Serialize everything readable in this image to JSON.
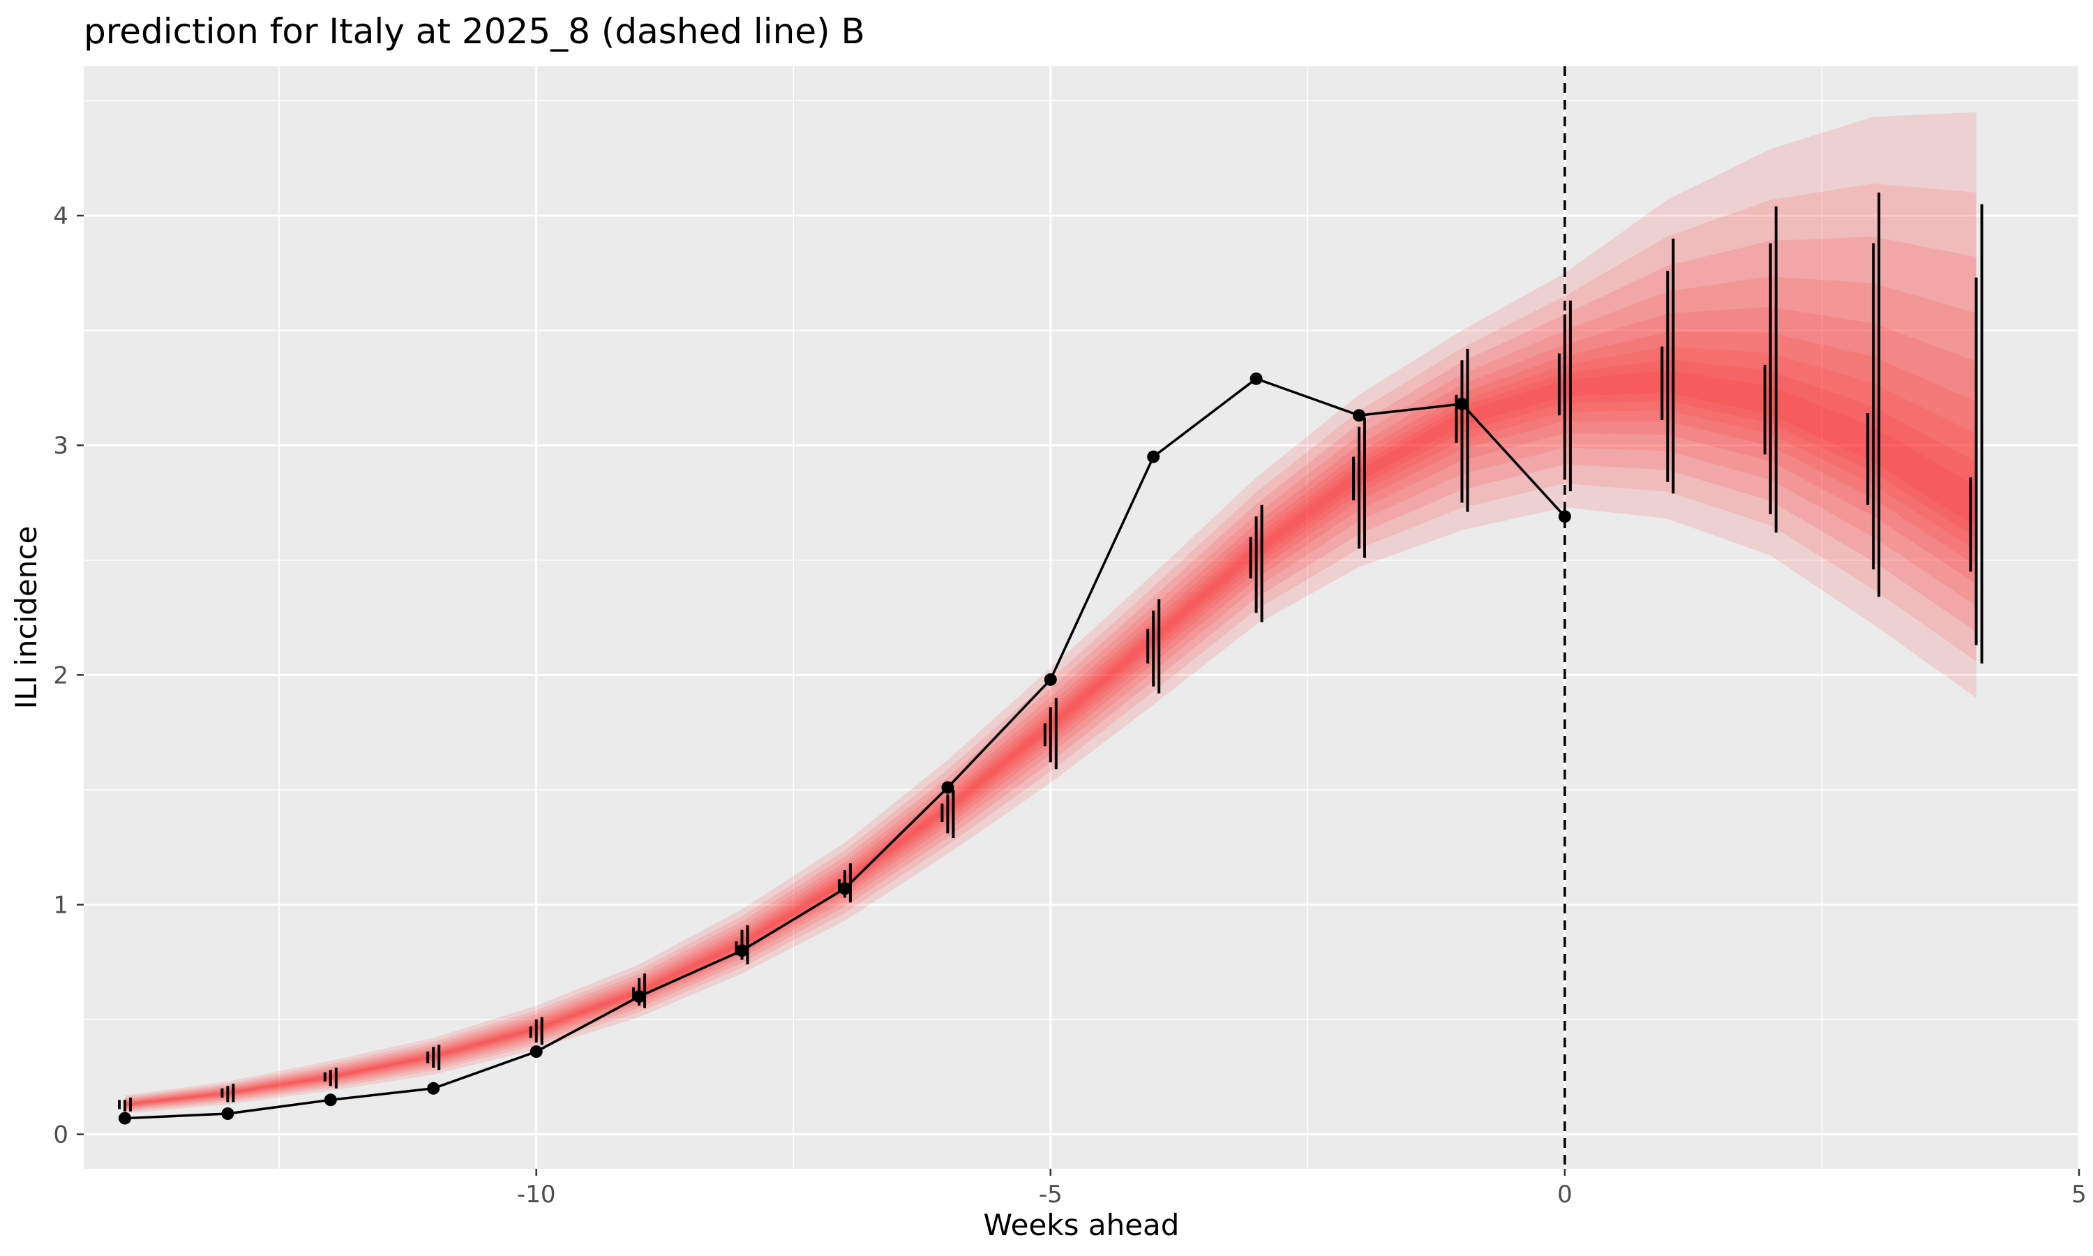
{
  "chart_data": {
    "type": "line",
    "title": "prediction for Italy at 2025_8 (dashed line) B",
    "xlabel": "Weeks ahead",
    "ylabel": "ILI incidence",
    "xlim": [
      -14.4,
      5
    ],
    "ylim": [
      -0.15,
      4.65
    ],
    "x_ticks": [
      -10,
      -5,
      0,
      5
    ],
    "x_tick_labels": [
      "-10",
      "-5",
      "0",
      "5"
    ],
    "y_ticks": [
      0,
      1,
      2,
      3,
      4
    ],
    "y_tick_labels": [
      "0",
      "1",
      "2",
      "3",
      "4"
    ],
    "grid": true,
    "reference_line": {
      "x": 0,
      "style": "dashed"
    },
    "observed": {
      "x": [
        -14,
        -13,
        -12,
        -11,
        -10,
        -9,
        -8,
        -7,
        -6,
        -5,
        -4,
        -3,
        -2,
        -1,
        0
      ],
      "y": [
        0.07,
        0.09,
        0.15,
        0.2,
        0.36,
        0.6,
        0.8,
        1.07,
        1.51,
        1.98,
        2.95,
        3.29,
        3.13,
        3.18,
        2.69
      ]
    },
    "forecast_band": {
      "x": [
        -14,
        -13,
        -12,
        -11,
        -10,
        -9,
        -8,
        -7,
        -6,
        -5,
        -4,
        -3,
        -2,
        -1,
        0,
        1,
        2,
        3,
        4
      ],
      "median": [
        0.13,
        0.18,
        0.25,
        0.34,
        0.46,
        0.62,
        0.83,
        1.1,
        1.42,
        1.78,
        2.16,
        2.54,
        2.87,
        3.12,
        3.25,
        3.27,
        3.18,
        2.98,
        2.7
      ],
      "outer_lower": [
        0.09,
        0.13,
        0.19,
        0.26,
        0.37,
        0.51,
        0.7,
        0.93,
        1.22,
        1.53,
        1.87,
        2.22,
        2.47,
        2.63,
        2.73,
        2.68,
        2.52,
        2.22,
        1.9
      ],
      "outer_upper": [
        0.17,
        0.23,
        0.32,
        0.42,
        0.56,
        0.74,
        0.98,
        1.27,
        1.63,
        2.03,
        2.44,
        2.86,
        3.22,
        3.5,
        3.75,
        4.07,
        4.29,
        4.43,
        4.45
      ]
    },
    "interval_bars": [
      {
        "x": -14,
        "segments": [
          [
            0.11,
            0.15
          ],
          [
            0.1,
            0.15
          ],
          [
            0.1,
            0.16
          ]
        ]
      },
      {
        "x": -13,
        "segments": [
          [
            0.16,
            0.2
          ],
          [
            0.14,
            0.21
          ],
          [
            0.14,
            0.22
          ]
        ]
      },
      {
        "x": -12,
        "segments": [
          [
            0.23,
            0.27
          ],
          [
            0.21,
            0.28
          ],
          [
            0.2,
            0.29
          ]
        ]
      },
      {
        "x": -11,
        "segments": [
          [
            0.31,
            0.36
          ],
          [
            0.29,
            0.38
          ],
          [
            0.28,
            0.39
          ]
        ]
      },
      {
        "x": -10,
        "segments": [
          [
            0.42,
            0.47
          ],
          [
            0.4,
            0.5
          ],
          [
            0.39,
            0.51
          ]
        ]
      },
      {
        "x": -9,
        "segments": [
          [
            0.59,
            0.64
          ],
          [
            0.56,
            0.68
          ],
          [
            0.55,
            0.7
          ]
        ]
      },
      {
        "x": -8,
        "segments": [
          [
            0.78,
            0.84
          ],
          [
            0.76,
            0.89
          ],
          [
            0.74,
            0.91
          ]
        ]
      },
      {
        "x": -7,
        "segments": [
          [
            1.05,
            1.11
          ],
          [
            1.03,
            1.15
          ],
          [
            1.01,
            1.18
          ]
        ]
      },
      {
        "x": -6,
        "segments": [
          [
            1.36,
            1.44
          ],
          [
            1.31,
            1.48
          ],
          [
            1.29,
            1.5
          ]
        ]
      },
      {
        "x": -5,
        "segments": [
          [
            1.69,
            1.79
          ],
          [
            1.62,
            1.86
          ],
          [
            1.59,
            1.9
          ]
        ]
      },
      {
        "x": -4,
        "segments": [
          [
            2.05,
            2.2
          ],
          [
            1.95,
            2.28
          ],
          [
            1.92,
            2.33
          ]
        ]
      },
      {
        "x": -3,
        "segments": [
          [
            2.42,
            2.6
          ],
          [
            2.27,
            2.69
          ],
          [
            2.23,
            2.74
          ]
        ]
      },
      {
        "x": -2,
        "segments": [
          [
            2.76,
            2.95
          ],
          [
            2.55,
            3.08
          ],
          [
            2.51,
            3.12
          ]
        ]
      },
      {
        "x": -1,
        "segments": [
          [
            3.01,
            3.22
          ],
          [
            2.75,
            3.37
          ],
          [
            2.71,
            3.42
          ]
        ]
      },
      {
        "x": 0,
        "segments": [
          [
            3.13,
            3.4
          ],
          [
            2.85,
            3.57
          ],
          [
            2.8,
            3.63
          ]
        ]
      },
      {
        "x": 1,
        "segments": [
          [
            3.11,
            3.43
          ],
          [
            2.84,
            3.76
          ],
          [
            2.79,
            3.9
          ]
        ]
      },
      {
        "x": 2,
        "segments": [
          [
            2.96,
            3.35
          ],
          [
            2.7,
            3.88
          ],
          [
            2.62,
            4.04
          ]
        ]
      },
      {
        "x": 3,
        "segments": [
          [
            2.74,
            3.14
          ],
          [
            2.46,
            3.88
          ],
          [
            2.34,
            4.1
          ]
        ]
      },
      {
        "x": 4,
        "segments": [
          [
            2.45,
            2.86
          ],
          [
            2.13,
            3.73
          ],
          [
            2.05,
            4.05
          ]
        ]
      }
    ]
  }
}
